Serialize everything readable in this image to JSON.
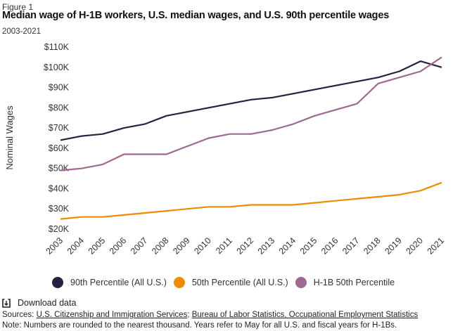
{
  "figure_label": "Figure 1",
  "download_label": "Download data",
  "sources_prefix": "Sources: ",
  "sources": [
    "U.S. Citizenship and Immigration Services",
    "Bureau of Labor Statistics, Occupational Employment Statistics"
  ],
  "sources_separator": "; ",
  "note": "Note: Numbers are rounded to the nearest thousand. Years refer to May for all U.S. and fiscal years for H-1Bs.",
  "chart_data": {
    "type": "line",
    "title": "Median wage of H-1B workers, U.S. median wages, and U.S. 90th percentile wages",
    "subtitle": "2003-2021",
    "xlabel": "",
    "ylabel": "Nominal Wages",
    "x": [
      "2003",
      "2004",
      "2005",
      "2006",
      "2007",
      "2008",
      "2009",
      "2010",
      "2011",
      "2012",
      "2013",
      "2014",
      "2015",
      "2016",
      "2017",
      "2018",
      "2019",
      "2020",
      "2021"
    ],
    "ylim": [
      20000,
      110000
    ],
    "yticks": [
      20000,
      30000,
      40000,
      50000,
      60000,
      70000,
      80000,
      90000,
      100000,
      110000
    ],
    "ytick_labels": [
      "$20K",
      "$30K",
      "$40K",
      "$50K",
      "$60K",
      "$70K",
      "$80K",
      "$90K",
      "$100K",
      "$110K"
    ],
    "grid": false,
    "legend_position": "bottom",
    "series": [
      {
        "name": "90th Percentile (All U.S.)",
        "color": "#24223f",
        "values": [
          64000,
          66000,
          67000,
          70000,
          72000,
          76000,
          78000,
          80000,
          82000,
          84000,
          85000,
          87000,
          89000,
          91000,
          93000,
          95000,
          98000,
          103000,
          100000
        ]
      },
      {
        "name": "50th Percentile (All U.S.)",
        "color": "#ef8b00",
        "values": [
          25000,
          26000,
          26000,
          27000,
          28000,
          29000,
          30000,
          31000,
          31000,
          32000,
          32000,
          32000,
          33000,
          34000,
          35000,
          36000,
          37000,
          39000,
          43000
        ]
      },
      {
        "name": "H-1B 50th Percentile",
        "color": "#a0688e",
        "values": [
          49000,
          50000,
          52000,
          57000,
          57000,
          57000,
          61000,
          65000,
          67000,
          67000,
          69000,
          72000,
          76000,
          79000,
          82000,
          92000,
          95000,
          98000,
          105000
        ]
      }
    ]
  }
}
